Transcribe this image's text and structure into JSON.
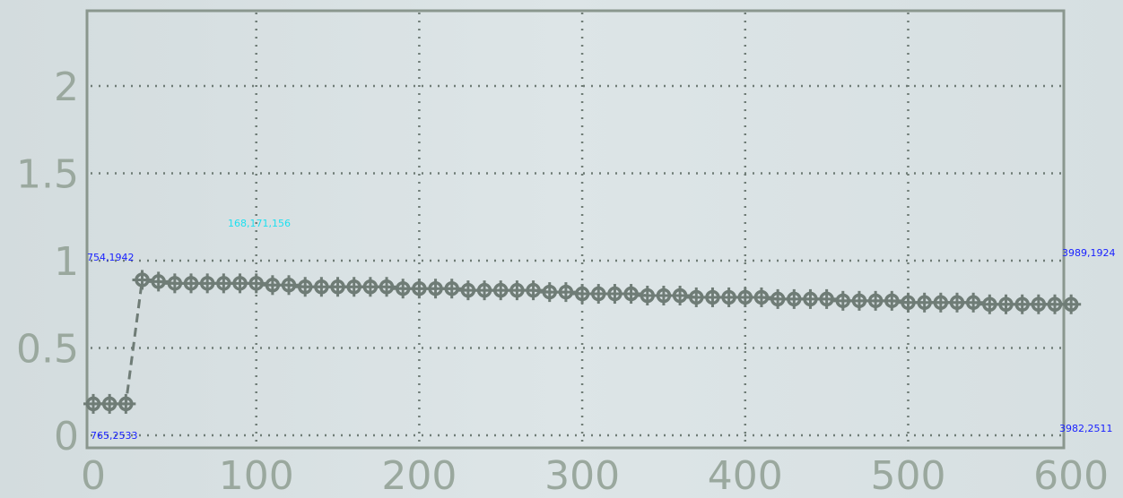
{
  "chart_data": {
    "type": "line",
    "title": "",
    "xlabel": "",
    "ylabel": "",
    "xlim": [
      0,
      600
    ],
    "ylim": [
      0,
      2.3
    ],
    "x_ticks": [
      0,
      100,
      200,
      300,
      400,
      500,
      600
    ],
    "x_tick_labels": [
      "0",
      "100",
      "200",
      "300",
      "400",
      "500",
      "600"
    ],
    "y_ticks": [
      0,
      0.5,
      1,
      1.5,
      2
    ],
    "y_tick_labels": [
      "0",
      "0.5",
      "1",
      "1.5",
      "2"
    ],
    "grid": true,
    "series": [
      {
        "marker": "circle-cross",
        "color": "#6f7c76",
        "x": [
          0,
          10,
          20,
          30,
          40,
          50,
          60,
          70,
          80,
          90,
          100,
          110,
          120,
          130,
          140,
          150,
          160,
          170,
          180,
          190,
          200,
          210,
          220,
          230,
          240,
          250,
          260,
          270,
          280,
          290,
          300,
          310,
          320,
          330,
          340,
          350,
          360,
          370,
          380,
          390,
          400,
          410,
          420,
          430,
          440,
          450,
          460,
          470,
          480,
          490,
          500,
          510,
          520,
          530,
          540,
          550,
          560,
          570,
          580,
          590,
          600
        ],
        "y": [
          0.18,
          0.18,
          0.18,
          0.89,
          0.88,
          0.87,
          0.87,
          0.87,
          0.87,
          0.87,
          0.87,
          0.86,
          0.86,
          0.85,
          0.85,
          0.85,
          0.85,
          0.85,
          0.85,
          0.84,
          0.84,
          0.84,
          0.84,
          0.83,
          0.83,
          0.83,
          0.83,
          0.83,
          0.82,
          0.82,
          0.81,
          0.81,
          0.81,
          0.81,
          0.8,
          0.8,
          0.8,
          0.79,
          0.79,
          0.79,
          0.79,
          0.79,
          0.78,
          0.78,
          0.78,
          0.78,
          0.77,
          0.77,
          0.77,
          0.77,
          0.76,
          0.76,
          0.76,
          0.76,
          0.76,
          0.75,
          0.75,
          0.75,
          0.75,
          0.75,
          0.75
        ]
      }
    ]
  },
  "overlay_labels": {
    "color_readout": "168,171,156",
    "top_left": "754,1942",
    "top_right": "3989,1924",
    "bottom_left": "765,2533",
    "bottom_right": "3982,2511"
  },
  "colors": {
    "axes": "#8a978e",
    "grid": "#6f7c76",
    "tick_label": "#9aa89e",
    "series": "#6f7c76",
    "overlay_cyan": "#1ee0f0",
    "overlay_blue": "#1a22ff"
  }
}
